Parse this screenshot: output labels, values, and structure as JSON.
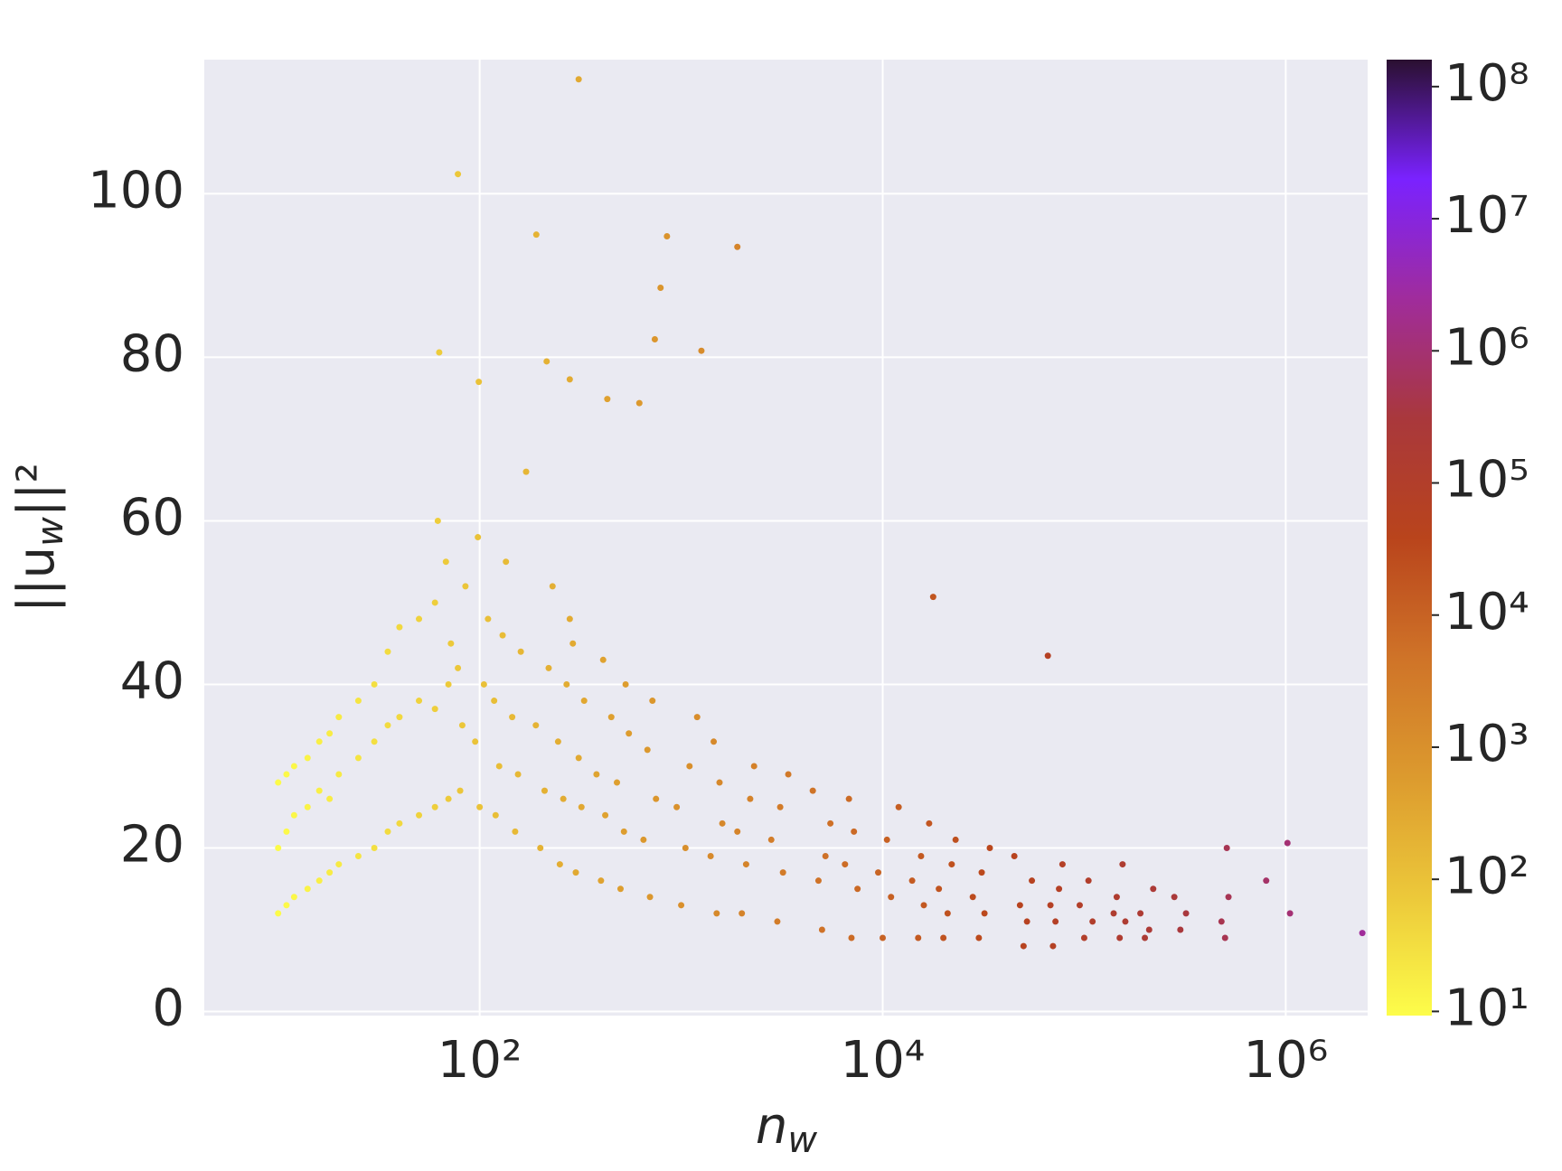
{
  "chart_data": {
    "type": "scatter",
    "xlabel": [
      "n",
      "w"
    ],
    "ylabel": [
      "||u",
      "w",
      "||²"
    ],
    "xscale": "log",
    "xlim": [
      4.3,
      2550000
    ],
    "ylim": [
      -0.5,
      116.4
    ],
    "xticks": [
      {
        "value": 100,
        "label": "10²"
      },
      {
        "value": 10000,
        "label": "10⁴"
      },
      {
        "value": 1000000,
        "label": "10⁶"
      }
    ],
    "yticks": [
      0,
      20,
      40,
      60,
      80,
      100
    ],
    "grid": true,
    "x": [
      10,
      10,
      10,
      11,
      11,
      11,
      12,
      12,
      12,
      14,
      14,
      14,
      16,
      16,
      16,
      18,
      18,
      18,
      20,
      20,
      20,
      25,
      25,
      25,
      30,
      30,
      30,
      35,
      35,
      35,
      40,
      40,
      40,
      50,
      50,
      50,
      60,
      60,
      60,
      62,
      70,
      70,
      72,
      68,
      80,
      82,
      78,
      85,
      100,
      95,
      105,
      110,
      98,
      120,
      125,
      118,
      130,
      135,
      150,
      155,
      145,
      160,
      170,
      200,
      210,
      190,
      220,
      230,
      250,
      260,
      245,
      270,
      280,
      300,
      320,
      310,
      330,
      290,
      400,
      420,
      380,
      450,
      410,
      500,
      520,
      480,
      550,
      530,
      700,
      650,
      750,
      680,
      720,
      1000,
      1050,
      950,
      1100,
      1200,
      1500,
      1400,
      1600,
      1550,
      1450,
      2000,
      2100,
      1900,
      2200,
      2300,
      3000,
      3200,
      2800,
      3100,
      3400,
      5000,
      4800,
      5200,
      5500,
      4500,
      7000,
      7500,
      6500,
      7200,
      6800,
      10000,
      11000,
      9500,
      10500,
      12000,
      15000,
      16000,
      14000,
      15500,
      17000,
      20000,
      21000,
      19000,
      22000,
      23000,
      30000,
      32000,
      28000,
      31000,
      34000,
      50000,
      52000,
      48000,
      55000,
      45000,
      70000,
      72000,
      68000,
      75000,
      78000,
      100000,
      110000,
      95000,
      105000,
      150000,
      160000,
      140000,
      145000,
      155000,
      200000,
      210000,
      190000,
      220000,
      300000,
      320000,
      280000,
      500000,
      480000,
      520000,
      510000,
      800000,
      310,
      78,
      191,
      850,
      1900,
      790,
      63,
      1260,
      99,
      740,
      215,
      280,
      430,
      620,
      17800,
      66000,
      1020000,
      2400000,
      1050000
    ],
    "values": [
      12,
      20,
      28,
      13,
      22,
      29,
      14,
      24,
      30,
      15,
      25,
      31,
      16,
      27,
      33,
      17,
      26,
      34,
      18,
      29,
      36,
      19,
      31,
      38,
      20,
      33,
      40,
      22,
      35,
      44,
      23,
      36,
      47,
      24,
      38,
      48,
      25,
      37,
      50,
      60,
      26,
      40,
      45,
      55,
      27,
      35,
      42,
      52,
      25,
      33,
      40,
      48,
      58,
      24,
      30,
      38,
      46,
      55,
      22,
      29,
      36,
      44,
      66,
      20,
      27,
      35,
      42,
      52,
      18,
      26,
      33,
      40,
      48,
      17,
      25,
      31,
      38,
      45,
      16,
      24,
      29,
      36,
      43,
      15,
      22,
      28,
      34,
      40,
      14,
      21,
      26,
      32,
      38,
      13,
      20,
      25,
      30,
      36,
      12,
      19,
      23,
      28,
      33,
      12,
      18,
      22,
      26,
      30,
      11,
      17,
      21,
      25,
      29,
      10,
      16,
      19,
      23,
      27,
      9,
      15,
      18,
      22,
      26,
      9,
      14,
      17,
      21,
      25,
      9,
      13,
      16,
      19,
      23,
      9,
      12,
      15,
      18,
      21,
      9,
      12,
      14,
      17,
      20,
      8,
      11,
      13,
      16,
      19,
      8,
      11,
      13,
      15,
      18,
      9,
      11,
      13,
      16,
      9,
      11,
      12,
      14,
      18,
      9,
      10,
      12,
      15,
      10,
      12,
      14,
      9,
      11,
      14,
      20,
      16,
      114,
      102.4,
      95,
      94.8,
      93.5,
      88.5,
      80.6,
      80.8,
      77,
      82.2,
      79.5,
      77.3,
      74.9,
      74.4,
      50.7,
      43.5,
      20.6,
      9.6,
      12
    ],
    "color_by": "x",
    "colormap": [
      "#fdfd4a",
      "#ecc83a",
      "#dc9a2e",
      "#cf7328",
      "#b9441c",
      "#a9383c",
      "#a02c9c",
      "#7a22ff",
      "#2a1030"
    ],
    "cscale": "log",
    "clim": [
      9.3,
      160000000
    ],
    "cticks": [
      {
        "value": 10,
        "label": "10¹"
      },
      {
        "value": 100,
        "label": "10²"
      },
      {
        "value": 1000,
        "label": "10³"
      },
      {
        "value": 10000,
        "label": "10⁴"
      },
      {
        "value": 100000,
        "label": "10⁵"
      },
      {
        "value": 1000000,
        "label": "10⁶"
      },
      {
        "value": 10000000,
        "label": "10⁷"
      },
      {
        "value": 100000000,
        "label": "10⁸"
      }
    ]
  }
}
